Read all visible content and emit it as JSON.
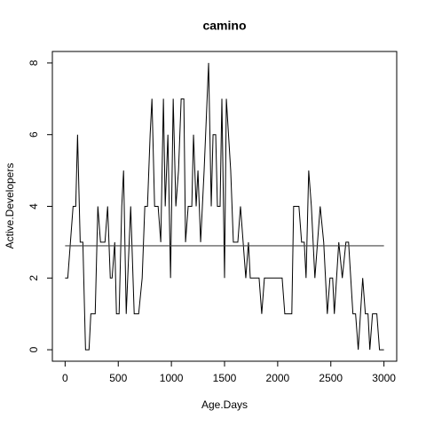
{
  "chart_data": {
    "type": "line",
    "title": "camino",
    "x_label": "Age.Days",
    "y_label": "Active.Developers",
    "x": [
      0,
      25,
      75,
      100,
      117,
      142,
      167,
      192,
      225,
      242,
      283,
      308,
      333,
      375,
      400,
      425,
      442,
      467,
      483,
      508,
      533,
      550,
      575,
      617,
      650,
      692,
      725,
      750,
      775,
      800,
      817,
      842,
      875,
      900,
      925,
      942,
      967,
      992,
      1017,
      1042,
      1067,
      1092,
      1117,
      1133,
      1158,
      1192,
      1208,
      1233,
      1250,
      1275,
      1308,
      1350,
      1375,
      1392,
      1417,
      1433,
      1458,
      1475,
      1500,
      1517,
      1558,
      1583,
      1625,
      1650,
      1675,
      1700,
      1725,
      1742,
      1825,
      1850,
      1875,
      2042,
      2067,
      2133,
      2150,
      2200,
      2225,
      2250,
      2267,
      2292,
      2317,
      2350,
      2400,
      2433,
      2467,
      2492,
      2517,
      2533,
      2575,
      2608,
      2642,
      2667,
      2708,
      2733,
      2758,
      2800,
      2825,
      2850,
      2867,
      2892,
      2933,
      2958,
      3000
    ],
    "series": [
      {
        "color": "#000000",
        "values": [
          2,
          2,
          4,
          4,
          6,
          3,
          3,
          0,
          0,
          1,
          1,
          4,
          3,
          3,
          4,
          2,
          2,
          3,
          1,
          1,
          4,
          5,
          1,
          4,
          1,
          1,
          2,
          4,
          4,
          6,
          7,
          4,
          4,
          3,
          7,
          4,
          6,
          2,
          7,
          4,
          5,
          7,
          7,
          3,
          4,
          4,
          6,
          4,
          5,
          3,
          5,
          8,
          4,
          6,
          6,
          4,
          4,
          7,
          2,
          7,
          5,
          3,
          3,
          4,
          3,
          2,
          3,
          2,
          2,
          1,
          2,
          2,
          1,
          1,
          4,
          4,
          3,
          3,
          2,
          5,
          4,
          2,
          4,
          3,
          1,
          2,
          2,
          1,
          3,
          2,
          3,
          3,
          1,
          1,
          0,
          2,
          1,
          1,
          0,
          1,
          1,
          0,
          0
        ]
      }
    ],
    "mean_line": 2.9,
    "xlim": [
      -120,
      3120
    ],
    "ylim": [
      -0.32,
      8.32
    ],
    "xticks": [
      0,
      500,
      1000,
      1500,
      2000,
      2500,
      3000
    ],
    "yticks": [
      0,
      2,
      4,
      6,
      8
    ]
  }
}
